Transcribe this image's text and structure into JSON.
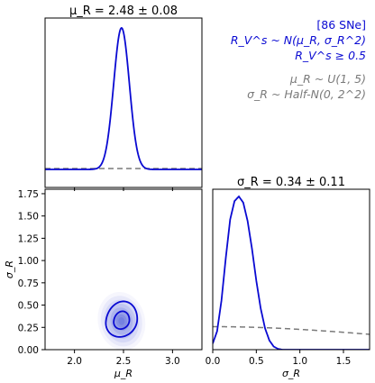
{
  "annotation": {
    "line1": "[86 SNe]",
    "line2": "R_V^s ~ N(μ_R, σ_R^2)",
    "line3": "R_V^s ≥ 0.5",
    "prior1": "μ_R ~ U(1, 5)",
    "prior2": "σ_R ~ Half-N(0, 2^2)"
  },
  "colors": {
    "posterior": "#0a0ad2",
    "prior": "#7a7a7a",
    "axis": "#000000"
  },
  "chart_data": [
    {
      "panel": "top-left",
      "type": "line",
      "title": "μ_R = 2.48 ± 0.08",
      "xlim": [
        1.7,
        3.3
      ],
      "xticks": [
        2.0,
        2.5,
        3.0
      ],
      "show_tick_labels": false,
      "series": [
        {
          "style": "posterior-solid",
          "kind": "gaussian",
          "mean": 2.48,
          "sd": 0.08
        },
        {
          "style": "prior-dashed",
          "kind": "flat"
        }
      ]
    },
    {
      "panel": "bottom-left",
      "type": "contour",
      "xlabel": "μ_R",
      "ylabel": "σ_R",
      "xlim": [
        1.7,
        3.3
      ],
      "ylim": [
        0.0,
        1.8
      ],
      "xticks": [
        2.0,
        2.5,
        3.0
      ],
      "xtick_labels": [
        "2.0",
        "2.5",
        "3.0"
      ],
      "yticks": [
        0.0,
        0.25,
        0.5,
        0.75,
        1.0,
        1.25,
        1.5,
        1.75
      ],
      "ytick_labels": [
        "0.00",
        "0.25",
        "0.50",
        "0.75",
        "1.00",
        "1.25",
        "1.50",
        "1.75"
      ],
      "density": {
        "mu_center": 2.48,
        "sigma_center": 0.32,
        "mu_sd": 0.08,
        "sigma_sd": 0.11,
        "correlation": 0.25
      },
      "contour_levels_sigma": [
        1,
        2
      ]
    },
    {
      "panel": "bottom-right",
      "type": "line",
      "title": "σ_R = 0.34 ± 0.11",
      "xlabel": "σ_R",
      "xlim": [
        0.0,
        1.8
      ],
      "xticks": [
        0.0,
        0.5,
        1.0,
        1.5
      ],
      "xtick_labels": [
        "0.0",
        "0.5",
        "1.0",
        "1.5"
      ],
      "series": [
        {
          "style": "posterior-solid",
          "kind": "posterior-curve",
          "points": [
            [
              0.0,
              0.04
            ],
            [
              0.05,
              0.12
            ],
            [
              0.1,
              0.32
            ],
            [
              0.15,
              0.6
            ],
            [
              0.2,
              0.85
            ],
            [
              0.25,
              0.97
            ],
            [
              0.3,
              1.0
            ],
            [
              0.35,
              0.96
            ],
            [
              0.4,
              0.84
            ],
            [
              0.45,
              0.66
            ],
            [
              0.5,
              0.45
            ],
            [
              0.55,
              0.27
            ],
            [
              0.6,
              0.14
            ],
            [
              0.65,
              0.06
            ],
            [
              0.7,
              0.02
            ],
            [
              0.75,
              0.005
            ],
            [
              0.8,
              0.0
            ],
            [
              1.8,
              0.0
            ]
          ]
        },
        {
          "style": "prior-dashed",
          "kind": "half-normal",
          "sd": 2.0,
          "relative_height": 0.12
        }
      ]
    }
  ]
}
